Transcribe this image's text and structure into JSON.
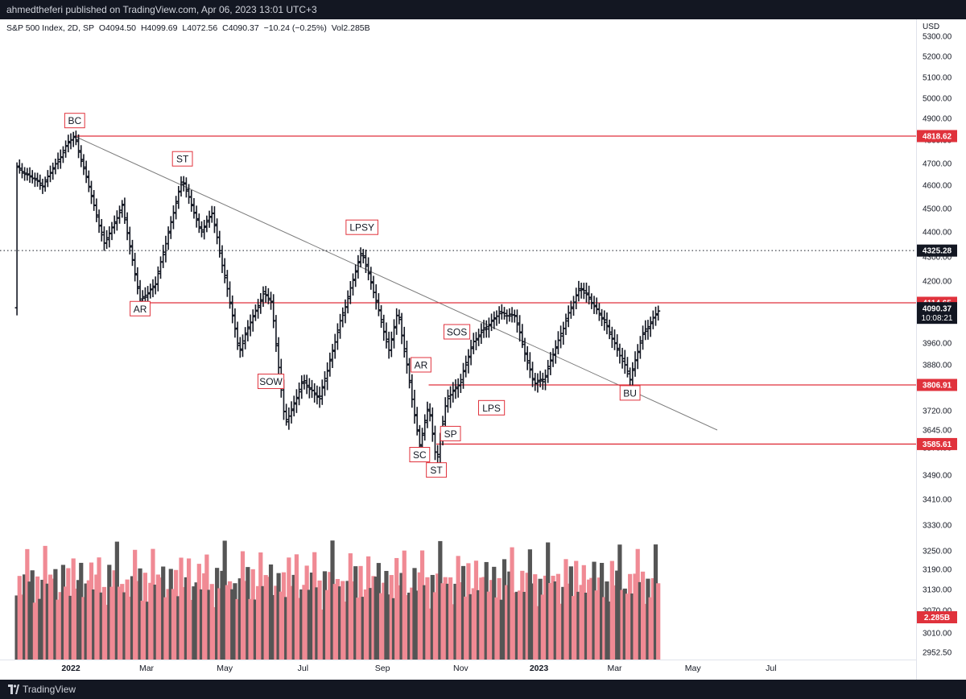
{
  "header": {
    "published": "ahmedtheferi published on TradingView.com, Apr 06, 2023 13:01 UTC+3"
  },
  "legend": {
    "symbol": "S&P 500 Index, 2D, SP",
    "open": "O4094.50",
    "high": "H4099.69",
    "low": "L4072.56",
    "close": "C4090.37",
    "change": "−10.24 (−0.25%)",
    "volume": "Vol2.285B"
  },
  "footer": {
    "brand": "TradingView"
  },
  "colors": {
    "level_line": "#e0323c",
    "price_bar": "#131722",
    "trendline": "#7a7a7a",
    "volume_down": "#f08a94",
    "volume_up": "#555555",
    "label_border": "#e0323c"
  },
  "icons": {
    "logo": "tradingview-logo-icon"
  },
  "chart_data": {
    "type": "ohlc",
    "y_axis": {
      "unit": "USD",
      "ticks": [
        5300,
        5200,
        5100,
        5000,
        4900,
        4800,
        4700,
        4600,
        4500,
        4400,
        4300,
        4200,
        4114.65,
        4040,
        3960,
        3880,
        3806.91,
        3720,
        3645,
        3570,
        3490,
        3410,
        3330,
        3250,
        3190,
        3130,
        3070,
        3010,
        2952.5
      ],
      "tick_labels": [
        "5300.00",
        "5200.00",
        "5100.00",
        "5000.00",
        "4900.00",
        "4800.00",
        "4700.00",
        "4600.00",
        "4500.00",
        "4400.00",
        "4300.00",
        "4200.00",
        "4114.65",
        "4040.00",
        "3960.00",
        "3880.00",
        "3806.91",
        "3720.00",
        "3645.00",
        "3570.00",
        "3490.00",
        "3410.00",
        "3330.00",
        "3250.00",
        "3190.00",
        "3130.00",
        "3070.00",
        "3010.00",
        "2952.50"
      ]
    },
    "x_axis": {
      "labels": [
        "2022",
        "Mar",
        "May",
        "Jul",
        "Sep",
        "Nov",
        "2023",
        "Mar",
        "May",
        "Jul"
      ],
      "bold": [
        "2022",
        "2023"
      ],
      "dates": [
        "2022-01-01",
        "2022-03-01",
        "2022-05-01",
        "2022-07-01",
        "2022-09-01",
        "2022-11-01",
        "2023-01-01",
        "2023-03-01",
        "2023-05-01",
        "2023-07-01"
      ]
    },
    "anchors": [
      [
        "2021-11-20",
        4680
      ],
      [
        "2021-12-10",
        4600
      ],
      [
        "2021-12-30",
        4790
      ],
      [
        "2022-01-04",
        4818
      ],
      [
        "2022-01-27",
        4350
      ],
      [
        "2022-02-10",
        4510
      ],
      [
        "2022-02-24",
        4120
      ],
      [
        "2022-03-08",
        4190
      ],
      [
        "2022-03-29",
        4630
      ],
      [
        "2022-04-12",
        4400
      ],
      [
        "2022-04-21",
        4480
      ],
      [
        "2022-05-12",
        3930
      ],
      [
        "2022-05-31",
        4150
      ],
      [
        "2022-06-06",
        4120
      ],
      [
        "2022-06-17",
        3670
      ],
      [
        "2022-07-01",
        3820
      ],
      [
        "2022-07-14",
        3760
      ],
      [
        "2022-08-16",
        4325
      ],
      [
        "2022-09-06",
        3930
      ],
      [
        "2022-09-13",
        4080
      ],
      [
        "2022-09-30",
        3585
      ],
      [
        "2022-10-07",
        3740
      ],
      [
        "2022-10-13",
        3520
      ],
      [
        "2022-10-21",
        3760
      ],
      [
        "2022-11-01",
        3820
      ],
      [
        "2022-11-10",
        3960
      ],
      [
        "2022-12-01",
        4070
      ],
      [
        "2022-12-13",
        4060
      ],
      [
        "2022-12-28",
        3810
      ],
      [
        "2023-01-05",
        3830
      ],
      [
        "2023-02-02",
        4180
      ],
      [
        "2023-02-16",
        4080
      ],
      [
        "2023-03-02",
        3950
      ],
      [
        "2023-03-13",
        3830
      ],
      [
        "2023-03-22",
        3980
      ],
      [
        "2023-04-05",
        4090
      ]
    ],
    "volume_pattern": [
      3.9,
      4.6,
      3.3,
      4.1,
      5.2,
      3.7,
      4.4,
      3.0,
      4.8,
      3.5,
      4.2,
      5.6,
      3.6,
      4.0
    ],
    "volume_marker": "2.285B",
    "levels": [
      {
        "name": "bc-level",
        "value": 4818.62,
        "label": "4818.62",
        "start": "2022-01-04",
        "style": "solid"
      },
      {
        "name": "lpsy-level",
        "value": 4325.28,
        "label": "4325.28",
        "start": "2021-11-20",
        "style": "dotted"
      },
      {
        "name": "ar-level",
        "value": 4114.65,
        "label": "4114.65",
        "start": "2022-02-24",
        "style": "solid"
      },
      {
        "name": "ar2-level",
        "value": 3806.91,
        "label": "3806.91",
        "start": "2022-10-07",
        "style": "solid"
      },
      {
        "name": "sc-level",
        "value": 3585.61,
        "label": "3585.61",
        "start": "2022-10-13",
        "style": "solid"
      }
    ],
    "last_price": {
      "value": 4090.37,
      "label": "4090.37",
      "countdown": "10:08:21"
    },
    "trendline": [
      [
        "2022-01-04",
        4818
      ],
      [
        "2023-05-20",
        3645
      ]
    ],
    "annotations": [
      {
        "text": "BC",
        "date": "2022-01-04",
        "price": 4890,
        "anchor": "below"
      },
      {
        "text": "ST",
        "date": "2022-03-29",
        "price": 4720,
        "anchor": "below"
      },
      {
        "text": "LPSY",
        "date": "2022-08-16",
        "price": 4420,
        "anchor": "below"
      },
      {
        "text": "AR",
        "date": "2022-02-24",
        "price": 4090,
        "anchor": "above"
      },
      {
        "text": "SOW",
        "date": "2022-06-06",
        "price": 3820,
        "anchor": "above"
      },
      {
        "text": "SOS",
        "date": "2022-10-29",
        "price": 4000,
        "anchor": "above"
      },
      {
        "text": "AR",
        "date": "2022-10-01",
        "price": 3880,
        "anchor": "above"
      },
      {
        "text": "LPS",
        "date": "2022-11-25",
        "price": 3730,
        "anchor": "above"
      },
      {
        "text": "SP",
        "date": "2022-10-24",
        "price": 3630,
        "anchor": "above"
      },
      {
        "text": "SC",
        "date": "2022-09-30",
        "price": 3550,
        "anchor": "above"
      },
      {
        "text": "ST",
        "date": "2022-10-13",
        "price": 3505,
        "anchor": "above"
      },
      {
        "text": "BU",
        "date": "2023-03-13",
        "price": 3780,
        "anchor": "above"
      }
    ]
  }
}
